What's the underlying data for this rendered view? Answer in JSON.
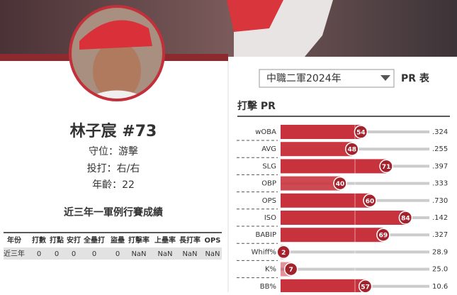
{
  "player": {
    "name": "林子宸 #73",
    "position": "守位：游擊",
    "bats_throws": "投打：右/右",
    "age": "年齡：22"
  },
  "stats": {
    "title": "近三年一軍例行賽成績",
    "headers": [
      "年份",
      "打數",
      "打點",
      "安打",
      "全壘打",
      "盜壘",
      "打擊率",
      "上壘率",
      "長打率",
      "OPS"
    ],
    "rows": [
      [
        "近三年",
        0,
        0,
        0,
        0,
        0,
        "NaN",
        "NaN",
        "NaN",
        "NaN"
      ]
    ]
  },
  "pr": {
    "season": "中職二軍2024年",
    "label": "PR 表",
    "section": "打擊 PR",
    "rows": [
      {
        "stat": "wOBA",
        "pr": 54,
        "value": ".324"
      },
      {
        "stat": "AVG",
        "pr": 48,
        "value": ".255"
      },
      {
        "stat": "SLG",
        "pr": 71,
        "value": ".397"
      },
      {
        "stat": "OBP",
        "pr": 40,
        "value": ".333"
      },
      {
        "stat": "OPS",
        "pr": 60,
        "value": ".730"
      },
      {
        "stat": "ISO",
        "pr": 84,
        "value": ".142"
      },
      {
        "stat": "BABIP",
        "pr": 69,
        "value": ".327"
      },
      {
        "stat": "Whiff%",
        "pr": 2,
        "value": "28.9"
      },
      {
        "stat": "K%",
        "pr": 7,
        "value": "25.0"
      },
      {
        "stat": "BB%",
        "pr": 57,
        "value": "10.6"
      }
    ]
  }
}
